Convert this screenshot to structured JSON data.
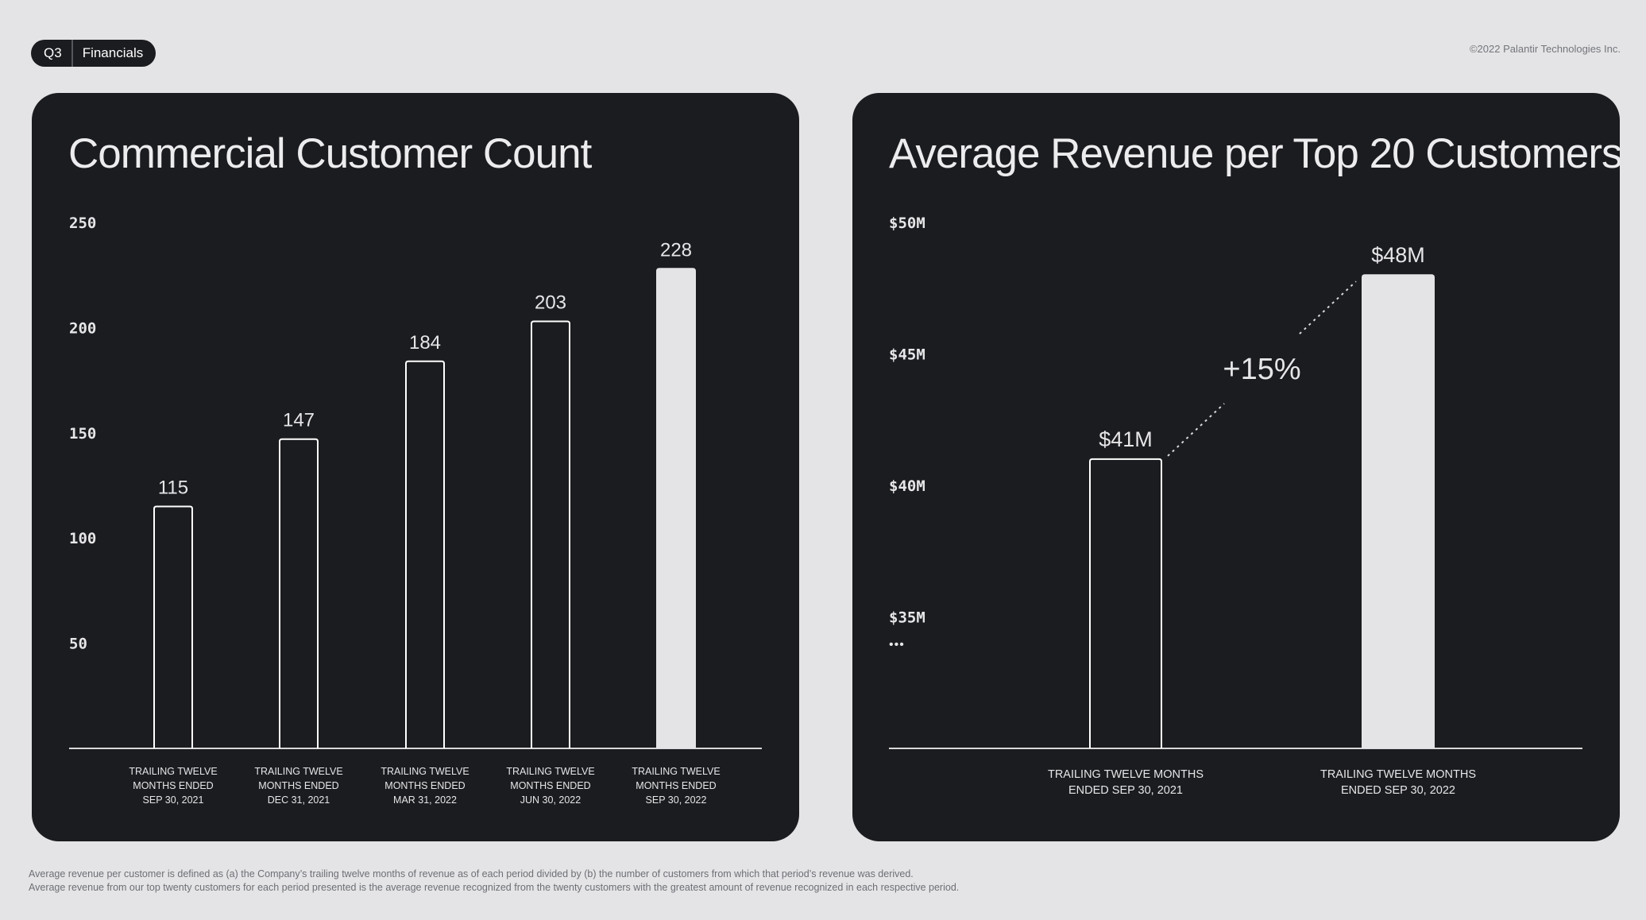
{
  "header": {
    "quarter": "Q3",
    "section": "Financials",
    "copyright": "©2022 Palantir Technologies Inc."
  },
  "colors": {
    "background": "#e4e4e6",
    "panel": "#1b1c1f",
    "bar_highlight": "#e4e4e6",
    "bar_outline": "#ffffff",
    "text": "#e6e6e8"
  },
  "chart_data": [
    {
      "type": "bar",
      "title": "Commercial Customer Count",
      "categories": [
        [
          "TRAILING TWELVE",
          "MONTHS ENDED",
          "SEP 30, 2021"
        ],
        [
          "TRAILING TWELVE",
          "MONTHS ENDED",
          "DEC 31, 2021"
        ],
        [
          "TRAILING TWELVE",
          "MONTHS ENDED",
          "MAR 31, 2022"
        ],
        [
          "TRAILING TWELVE",
          "MONTHS ENDED",
          "JUN 30, 2022"
        ],
        [
          "TRAILING TWELVE",
          "MONTHS ENDED",
          "SEP 30, 2022"
        ]
      ],
      "values": [
        115,
        147,
        184,
        203,
        228
      ],
      "value_labels": [
        "115",
        "147",
        "184",
        "203",
        "228"
      ],
      "highlight_index": 4,
      "yticks": [
        50,
        100,
        150,
        200,
        250
      ],
      "ytick_labels": [
        "50",
        "100",
        "150",
        "200",
        "250"
      ],
      "ylim": [
        0,
        250
      ],
      "xlabel": "",
      "ylabel": "",
      "grid": false
    },
    {
      "type": "bar",
      "title": "Average Revenue per Top 20 Customers",
      "categories": [
        [
          "TRAILING TWELVE MONTHS",
          "ENDED SEP 30, 2021"
        ],
        [
          "TRAILING TWELVE MONTHS",
          "ENDED SEP 30, 2022"
        ]
      ],
      "values": [
        41,
        48
      ],
      "value_labels": [
        "$41M",
        "$48M"
      ],
      "highlight_index": 1,
      "yticks": [
        35,
        40,
        45,
        50
      ],
      "ytick_labels": [
        "$35M",
        "$40M",
        "$45M",
        "$50M"
      ],
      "axis_break_label": "•••",
      "ylim": [
        30,
        50
      ],
      "unit": "$M",
      "annotation": "+15%",
      "xlabel": "",
      "ylabel": "",
      "grid": false
    }
  ],
  "footnotes": [
    "Average revenue per customer is defined as (a) the Company’s trailing twelve months of revenue as of each period divided by (b) the number of customers from which that period’s revenue was derived.",
    "Average revenue from our top twenty customers for each period presented is the average revenue recognized from the twenty customers with the greatest amount of revenue recognized in each respective period."
  ]
}
